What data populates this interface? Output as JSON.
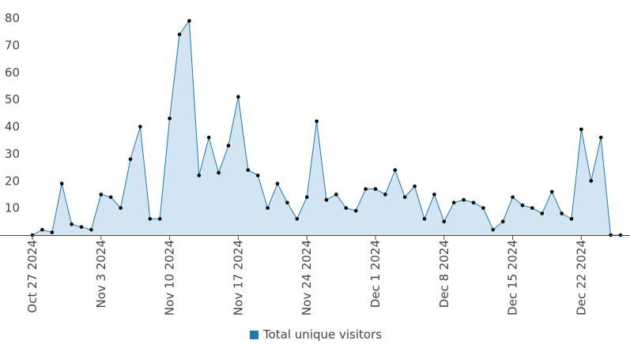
{
  "chart_data": {
    "type": "area",
    "x_start": "2024-10-27",
    "x_ticks": [
      "Oct 27 2024",
      "Nov 3 2024",
      "Nov 10 2024",
      "Nov 17 2024",
      "Nov 24 2024",
      "Dec 1 2024",
      "Dec 8 2024",
      "Dec 15 2024",
      "Dec 22 2024"
    ],
    "ylim": [
      0,
      80
    ],
    "y_ticks": [
      10,
      20,
      30,
      40,
      50,
      60,
      70,
      80
    ],
    "grid": false,
    "legend": "bottom",
    "series": [
      {
        "name": "Total unique visitors",
        "color": "#1f77b4",
        "fill": "#d3e4f2",
        "x": [
          "2024-10-27",
          "2024-10-28",
          "2024-10-29",
          "2024-10-30",
          "2024-10-31",
          "2024-11-01",
          "2024-11-02",
          "2024-11-03",
          "2024-11-04",
          "2024-11-05",
          "2024-11-06",
          "2024-11-07",
          "2024-11-08",
          "2024-11-09",
          "2024-11-10",
          "2024-11-11",
          "2024-11-12",
          "2024-11-13",
          "2024-11-14",
          "2024-11-15",
          "2024-11-16",
          "2024-11-17",
          "2024-11-18",
          "2024-11-19",
          "2024-11-20",
          "2024-11-21",
          "2024-11-22",
          "2024-11-23",
          "2024-11-24",
          "2024-11-25",
          "2024-11-26",
          "2024-11-27",
          "2024-11-28",
          "2024-11-29",
          "2024-11-30",
          "2024-12-01",
          "2024-12-02",
          "2024-12-03",
          "2024-12-04",
          "2024-12-05",
          "2024-12-06",
          "2024-12-07",
          "2024-12-08",
          "2024-12-09",
          "2024-12-10",
          "2024-12-11",
          "2024-12-12",
          "2024-12-13",
          "2024-12-14",
          "2024-12-15",
          "2024-12-16",
          "2024-12-17",
          "2024-12-18",
          "2024-12-19",
          "2024-12-20",
          "2024-12-21",
          "2024-12-22",
          "2024-12-23",
          "2024-12-24",
          "2024-12-25",
          "2024-12-26"
        ],
        "values": [
          0,
          2,
          1,
          19,
          4,
          3,
          2,
          15,
          14,
          10,
          28,
          40,
          6,
          6,
          43,
          74,
          79,
          22,
          36,
          23,
          33,
          51,
          24,
          22,
          10,
          19,
          12,
          6,
          14,
          42,
          13,
          15,
          10,
          9,
          17,
          17,
          15,
          24,
          14,
          18,
          6,
          15,
          5,
          12,
          13,
          12,
          10,
          2,
          5,
          14,
          11,
          10,
          8,
          16,
          8,
          6,
          39,
          20,
          36,
          0,
          0
        ]
      }
    ]
  }
}
